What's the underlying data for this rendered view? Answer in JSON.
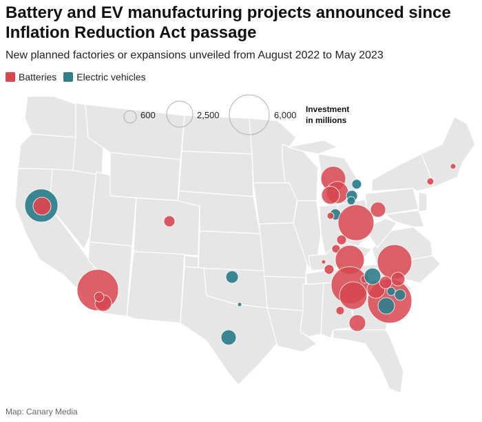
{
  "title": "Battery and EV manufacturing projects announced since Inflation Reduction Act passage",
  "subtitle": "New planned factories or expansions unveiled from August 2022 to May 2023",
  "legend": [
    {
      "label": "Batteries",
      "color": "#d7474f"
    },
    {
      "label": "Electric vehicles",
      "color": "#2f7f8c"
    }
  ],
  "size_legend": {
    "title_line1": "Investment",
    "title_line2": "in millions",
    "values": [
      {
        "label": "600",
        "value": 600
      },
      {
        "label": "2,500",
        "value": 2500
      },
      {
        "label": "6,000",
        "value": 6000
      }
    ]
  },
  "credit": "Map: Canary Media",
  "colors": {
    "land": "#e6e6e6",
    "border": "#ffffff",
    "batteries": "#d7474f",
    "ev": "#2f7f8c"
  }
}
